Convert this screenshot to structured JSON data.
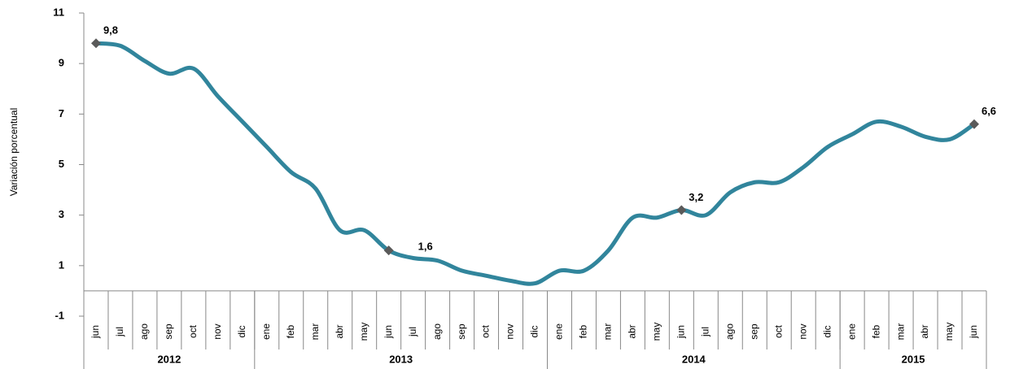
{
  "chart_data": {
    "type": "line",
    "y_label": "Variación porcentual",
    "categories": [
      "jun",
      "jul",
      "ago",
      "sep",
      "oct",
      "nov",
      "dic",
      "ene",
      "feb",
      "mar",
      "abr",
      "may",
      "jun",
      "jul",
      "ago",
      "sep",
      "oct",
      "nov",
      "dic",
      "ene",
      "feb",
      "mar",
      "abr",
      "may",
      "jun",
      "jul",
      "ago",
      "sep",
      "oct",
      "nov",
      "dic",
      "ene",
      "feb",
      "mar",
      "abr",
      "may",
      "jun"
    ],
    "x_groups": [
      {
        "label": "2012",
        "count": 7
      },
      {
        "label": "2013",
        "count": 12
      },
      {
        "label": "2014",
        "count": 12
      },
      {
        "label": "2015",
        "count": 6
      }
    ],
    "series": [
      {
        "name": "Variación porcentual",
        "color": "#31859c",
        "marker_color": "#5a5a5a",
        "values": [
          9.8,
          9.7,
          9.1,
          8.6,
          8.8,
          7.7,
          6.7,
          5.7,
          4.7,
          4.05,
          2.4,
          2.4,
          1.6,
          1.3,
          1.2,
          0.8,
          0.6,
          0.4,
          0.3,
          0.8,
          0.8,
          1.6,
          2.9,
          2.9,
          3.2,
          3.0,
          3.9,
          4.3,
          4.3,
          4.9,
          5.7,
          6.2,
          6.7,
          6.5,
          6.1,
          6.0,
          6.6
        ],
        "value_labels": [
          "9,8",
          null,
          null,
          null,
          null,
          null,
          null,
          null,
          null,
          null,
          null,
          null,
          "1,6",
          null,
          null,
          null,
          null,
          null,
          null,
          null,
          null,
          null,
          null,
          null,
          "3,2",
          null,
          null,
          null,
          null,
          null,
          null,
          null,
          null,
          null,
          null,
          null,
          "6,6"
        ]
      }
    ],
    "ylim": [
      -1,
      11
    ],
    "yticks": [
      -1,
      1,
      3,
      5,
      7,
      9,
      11
    ]
  }
}
